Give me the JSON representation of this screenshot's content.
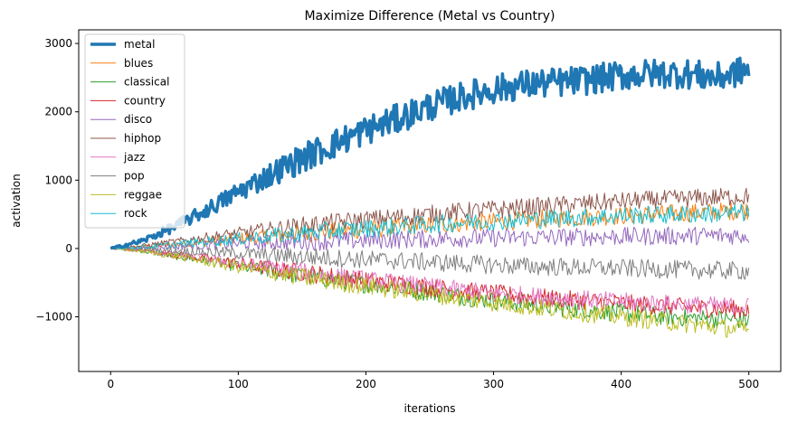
{
  "chart_data": {
    "type": "line",
    "title": "Maximize Difference (Metal vs Country)",
    "xlabel": "iterations",
    "ylabel": "activation",
    "xlim": [
      -25,
      525
    ],
    "ylim": [
      -1800,
      3200
    ],
    "xticks": [
      0,
      100,
      200,
      300,
      400,
      500
    ],
    "yticks": [
      -1000,
      0,
      1000,
      2000,
      3000
    ],
    "xtick_labels": [
      "0",
      "100",
      "200",
      "300",
      "400",
      "500"
    ],
    "ytick_labels": [
      "−1000",
      "0",
      "1000",
      "2000",
      "3000"
    ],
    "legend_position": "upper-left",
    "grid": false,
    "x_range": [
      0,
      500
    ],
    "series": [
      {
        "name": "metal",
        "color": "#1f77b4",
        "width": 3.5,
        "values": [
          0,
          110,
          320,
          560,
          830,
          1080,
          1320,
          1530,
          1730,
          1900,
          2080,
          2220,
          2330,
          2400,
          2430,
          2470,
          2530,
          2560,
          2560,
          2500,
          2620
        ]
      },
      {
        "name": "blues",
        "color": "#ff7f0e",
        "width": 1,
        "values": [
          0,
          20,
          60,
          100,
          140,
          180,
          220,
          250,
          280,
          310,
          340,
          370,
          390,
          420,
          440,
          460,
          480,
          500,
          520,
          540,
          560
        ]
      },
      {
        "name": "classical",
        "color": "#2ca02c",
        "width": 1,
        "values": [
          0,
          -40,
          -110,
          -180,
          -260,
          -330,
          -400,
          -460,
          -520,
          -580,
          -640,
          -700,
          -760,
          -810,
          -860,
          -900,
          -940,
          -980,
          -1010,
          -1030,
          -1050
        ]
      },
      {
        "name": "country",
        "color": "#d62728",
        "width": 1,
        "values": [
          0,
          -30,
          -90,
          -150,
          -220,
          -290,
          -350,
          -410,
          -470,
          -520,
          -570,
          -620,
          -660,
          -700,
          -740,
          -770,
          -800,
          -830,
          -860,
          -880,
          -900
        ]
      },
      {
        "name": "disco",
        "color": "#9467bd",
        "width": 1,
        "values": [
          0,
          10,
          30,
          50,
          70,
          90,
          100,
          110,
          120,
          130,
          140,
          150,
          155,
          160,
          165,
          170,
          175,
          180,
          185,
          190,
          195
        ]
      },
      {
        "name": "hiphop",
        "color": "#8c564b",
        "width": 1,
        "values": [
          0,
          40,
          100,
          160,
          220,
          280,
          330,
          380,
          420,
          460,
          500,
          540,
          570,
          600,
          630,
          660,
          690,
          710,
          730,
          750,
          760
        ]
      },
      {
        "name": "jazz",
        "color": "#e377c2",
        "width": 1,
        "values": [
          0,
          -30,
          -90,
          -150,
          -220,
          -280,
          -340,
          -400,
          -460,
          -510,
          -560,
          -610,
          -650,
          -690,
          -720,
          -750,
          -780,
          -800,
          -820,
          -840,
          -850
        ]
      },
      {
        "name": "pop",
        "color": "#7f7f7f",
        "width": 1,
        "values": [
          0,
          -10,
          -30,
          -50,
          -70,
          -100,
          -120,
          -140,
          -160,
          -180,
          -200,
          -220,
          -240,
          -260,
          -270,
          -280,
          -290,
          -300,
          -310,
          -320,
          -330
        ]
      },
      {
        "name": "reggae",
        "color": "#bcbd22",
        "width": 1,
        "values": [
          0,
          -40,
          -110,
          -190,
          -270,
          -350,
          -420,
          -490,
          -550,
          -610,
          -670,
          -730,
          -790,
          -850,
          -900,
          -950,
          -1000,
          -1050,
          -1100,
          -1150,
          -1200
        ]
      },
      {
        "name": "rock",
        "color": "#17becf",
        "width": 1,
        "values": [
          0,
          20,
          60,
          100,
          140,
          180,
          220,
          260,
          290,
          320,
          350,
          380,
          400,
          420,
          440,
          460,
          480,
          490,
          500,
          510,
          520
        ]
      }
    ]
  }
}
